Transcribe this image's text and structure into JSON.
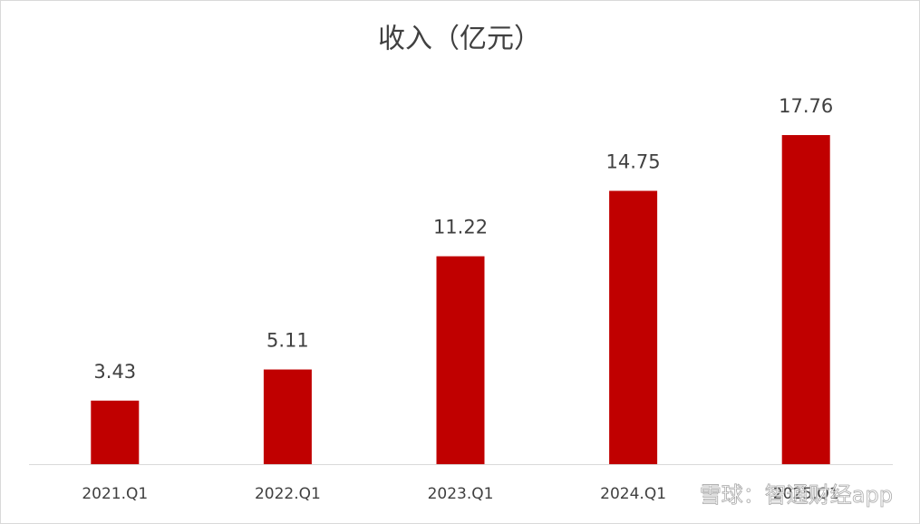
{
  "chart_data": {
    "type": "bar",
    "title": "收入（亿元）",
    "categories": [
      "2021.Q1",
      "2022.Q1",
      "2023.Q1",
      "2024.Q1",
      "2025.Q1"
    ],
    "values": [
      3.43,
      5.11,
      11.22,
      14.75,
      17.76
    ],
    "color": "#c00000",
    "watermark": "雪球：智通财经app"
  }
}
